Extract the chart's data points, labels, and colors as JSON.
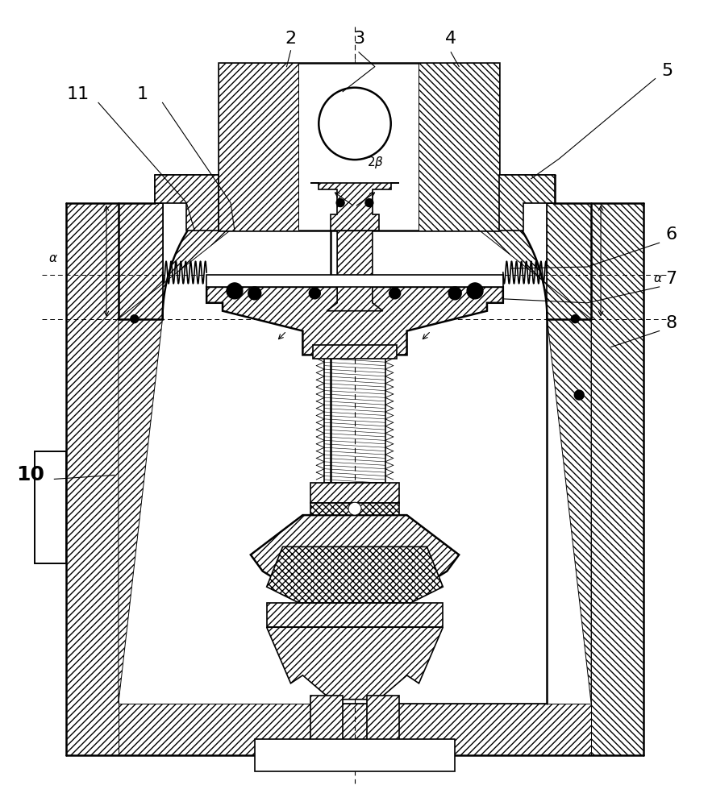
{
  "figure_width": 8.79,
  "figure_height": 10.0,
  "dpi": 100,
  "bg_color": "#ffffff",
  "lc": "#000000"
}
